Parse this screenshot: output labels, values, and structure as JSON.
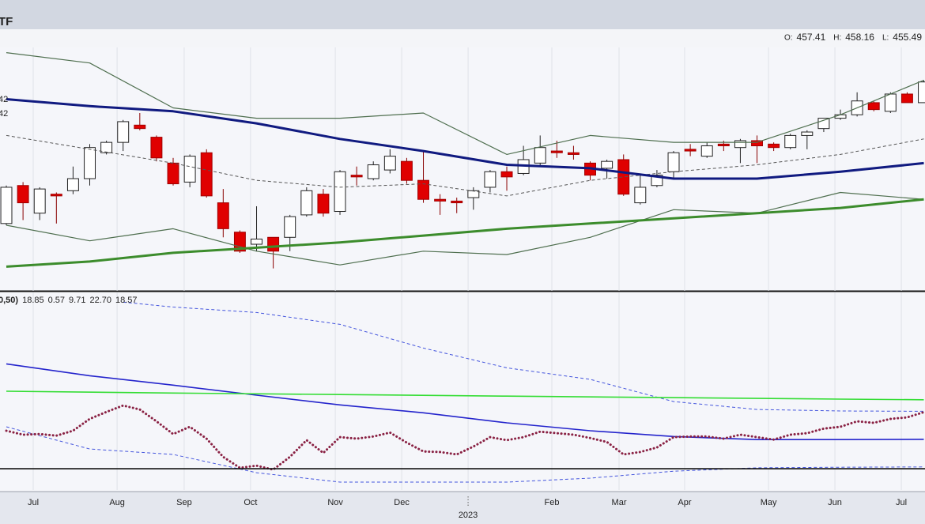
{
  "header": {
    "title": "TF",
    "ohlc": [
      {
        "label": "O:",
        "value": 457.41
      },
      {
        "label": "H:",
        "value": 458.16
      },
      {
        "label": "L:",
        "value": 455.49
      }
    ]
  },
  "chart_data": [
    {
      "type": "candlestick",
      "xlim": [
        -0.38,
        55.07
      ],
      "ylim": [
        337,
        478
      ],
      "up_color": "#ffffff",
      "down_color": "#e00000",
      "open": [
        376,
        398,
        382,
        393,
        395,
        402,
        417,
        423,
        433,
        426,
        411,
        400,
        417,
        388,
        371,
        364,
        368,
        368,
        381,
        393,
        383,
        404,
        402,
        407,
        412,
        401,
        390,
        389,
        391,
        397,
        406,
        405,
        411,
        418,
        417,
        411,
        408,
        413,
        388,
        398,
        406,
        419,
        415,
        422,
        420,
        424,
        422,
        420,
        427,
        431,
        437,
        439,
        446,
        441,
        451,
        446
      ],
      "close": [
        397,
        388,
        396,
        392,
        402,
        420,
        423,
        435,
        431,
        414,
        399,
        415,
        392,
        373,
        360,
        367,
        360,
        380,
        395,
        382,
        406,
        403,
        410,
        415,
        401,
        390,
        389,
        388,
        395,
        406,
        403,
        413,
        420,
        417,
        416,
        404,
        412,
        393,
        397,
        404,
        417,
        418,
        421,
        421,
        424,
        421,
        420,
        427,
        429,
        437,
        439,
        447,
        442,
        451,
        446,
        458
      ],
      "high": [
        398,
        400,
        397,
        394,
        409,
        422,
        424,
        436,
        440,
        427,
        414,
        416,
        419,
        396,
        372,
        386,
        368,
        381,
        397,
        396,
        407,
        409,
        412,
        419,
        414,
        418,
        393,
        391,
        397,
        407,
        409,
        421,
        427,
        424,
        421,
        412,
        413,
        416,
        405,
        407,
        418,
        422,
        423,
        424,
        425,
        427,
        423,
        428,
        430,
        437,
        442,
        452,
        447,
        452,
        452,
        459
      ],
      "low": [
        375,
        378,
        378,
        376,
        393,
        398,
        416,
        418,
        430,
        412,
        398,
        397,
        391,
        368,
        359,
        360,
        350,
        360,
        380,
        380,
        381,
        398,
        401,
        405,
        399,
        388,
        381,
        382,
        384,
        394,
        395,
        404,
        409,
        414,
        413,
        401,
        402,
        392,
        387,
        397,
        402,
        415,
        414,
        418,
        411,
        411,
        418,
        419,
        419,
        429,
        436,
        438,
        441,
        440,
        446,
        446
      ],
      "legend_labels": [
        {
          "label": "42",
          "color": "#2e7d2e"
        },
        {
          "label": "42",
          "color": "#cc33cc"
        }
      ],
      "series": [
        {
          "color": "#4f6f4f",
          "style": "thin",
          "x": [
            0,
            5,
            10,
            15,
            20,
            25,
            30,
            35,
            40,
            45,
            50,
            55
          ],
          "values": [
            475,
            469,
            443,
            437,
            437,
            440,
            416,
            427,
            423,
            423,
            439,
            459
          ]
        },
        {
          "color": "#4f6f4f",
          "style": "thin",
          "x": [
            0,
            5,
            10,
            15,
            20,
            25,
            30,
            35,
            40,
            45,
            50,
            55
          ],
          "values": [
            375,
            366,
            373,
            360,
            352,
            360,
            358,
            368,
            384,
            382,
            394,
            390
          ]
        },
        {
          "color": "#555555",
          "style": "dashed",
          "x": [
            0,
            5,
            10,
            15,
            20,
            25,
            30,
            35,
            40,
            45,
            50,
            55
          ],
          "values": [
            427,
            419,
            411,
            401,
            397,
            399,
            392,
            401,
            406,
            410,
            416,
            425
          ]
        },
        {
          "color": "#101a80",
          "style": "thick",
          "x": [
            0,
            5,
            10,
            15,
            20,
            25,
            30,
            35,
            40,
            45,
            50,
            55
          ],
          "values": [
            448,
            444,
            441,
            434,
            425,
            418,
            410,
            408,
            402,
            402,
            406,
            411
          ]
        },
        {
          "color": "#3c8c2c",
          "style": "thick",
          "x": [
            0,
            5,
            10,
            15,
            20,
            25,
            30,
            35,
            40,
            45,
            50,
            55
          ],
          "values": [
            351,
            354,
            359,
            362,
            365,
            369,
            373,
            376,
            379,
            382,
            385,
            390
          ]
        }
      ]
    },
    {
      "type": "line",
      "xlim": [
        -0.38,
        55.07
      ],
      "ylim": [
        -7,
        58
      ],
      "hline": 0,
      "legend_label": "0,50)",
      "legend_values": [
        {
          "value": 18.85,
          "color": "#3344cc"
        },
        {
          "value": 0.57,
          "color": "#3344cc"
        },
        {
          "value": 9.71,
          "color": "#3344cc"
        },
        {
          "value": 22.7,
          "label": "22.70",
          "color": "#22cc22"
        },
        {
          "value": 18.57,
          "color": "#8a2244"
        }
      ],
      "xticks": [
        {
          "value": 1.61,
          "label": "Jul"
        },
        {
          "value": 6.64,
          "label": "Aug"
        },
        {
          "value": 10.66,
          "label": "Sep"
        },
        {
          "value": 14.64,
          "label": "Oct"
        },
        {
          "value": 19.72,
          "label": "Nov"
        },
        {
          "value": 23.7,
          "label": "Dec"
        },
        {
          "value": 32.7,
          "label": "Feb"
        },
        {
          "value": 36.73,
          "label": "Mar"
        },
        {
          "value": 40.66,
          "label": "Apr"
        },
        {
          "value": 45.69,
          "label": "May"
        },
        {
          "value": 49.67,
          "label": "Jun"
        },
        {
          "value": 53.65,
          "label": "Jul"
        }
      ],
      "year_ticks": [
        {
          "value": 27.68,
          "label": "2023"
        }
      ],
      "series": [
        {
          "color": "#4455dd",
          "style": "dashed",
          "x": [
            7,
            10,
            15,
            20,
            25,
            30,
            35,
            40,
            45,
            50,
            55
          ],
          "values": [
            54.8,
            53.2,
            51.4,
            47.5,
            39.7,
            33.2,
            29.4,
            22.1,
            19.5,
            19.0,
            18.9
          ]
        },
        {
          "color": "#4455dd",
          "style": "dashed",
          "x": [
            0,
            5,
            10,
            15,
            20,
            25,
            30,
            35,
            40,
            45,
            50,
            55
          ],
          "values": [
            13.8,
            6.5,
            4.7,
            -1.3,
            -4.4,
            -4.4,
            -4.4,
            -3.1,
            -0.8,
            0.3,
            0.5,
            0.6
          ]
        },
        {
          "color": "#2424cc",
          "style": "solid",
          "x": [
            0,
            5,
            10,
            15,
            20,
            25,
            30,
            35,
            40,
            45,
            50,
            55
          ],
          "values": [
            34.5,
            30.6,
            27.5,
            24.2,
            21.0,
            18.4,
            15.1,
            12.5,
            10.6,
            9.6,
            9.6,
            9.7
          ]
        },
        {
          "color": "#33dd33",
          "style": "solid",
          "x": [
            0,
            10,
            20,
            30,
            40,
            50,
            55
          ],
          "values": [
            25.5,
            24.9,
            24.4,
            23.9,
            23.4,
            22.9,
            22.7
          ]
        },
        {
          "color": "#8a2244",
          "style": "dotted",
          "x": [
            0,
            1,
            2,
            3,
            4,
            5,
            6,
            7,
            8,
            9,
            10,
            11,
            12,
            13,
            14,
            15,
            16,
            17,
            18,
            19,
            20,
            21,
            22,
            23,
            24,
            25,
            26,
            27,
            28,
            29,
            30,
            31,
            32,
            33,
            34,
            35,
            36,
            37,
            38,
            39,
            40,
            41,
            42,
            43,
            44,
            45,
            46,
            47,
            48,
            49,
            50,
            51,
            52,
            53,
            54,
            55
          ],
          "values": [
            12.5,
            11.2,
            11.4,
            10.9,
            12.5,
            16.4,
            18.7,
            20.8,
            19.5,
            15.6,
            11.4,
            13.8,
            9.9,
            3.9,
            0.3,
            1.0,
            -0.3,
            3.9,
            9.4,
            5.2,
            10.4,
            9.9,
            10.6,
            11.9,
            8.6,
            5.7,
            5.5,
            4.7,
            7.3,
            10.4,
            9.4,
            10.4,
            12.2,
            11.7,
            11.2,
            10.1,
            8.8,
            4.7,
            5.5,
            7.0,
            10.4,
            10.6,
            10.6,
            9.9,
            11.2,
            10.4,
            9.6,
            11.2,
            11.7,
            13.2,
            13.8,
            15.6,
            15.1,
            16.4,
            16.9,
            18.6
          ]
        }
      ]
    }
  ]
}
